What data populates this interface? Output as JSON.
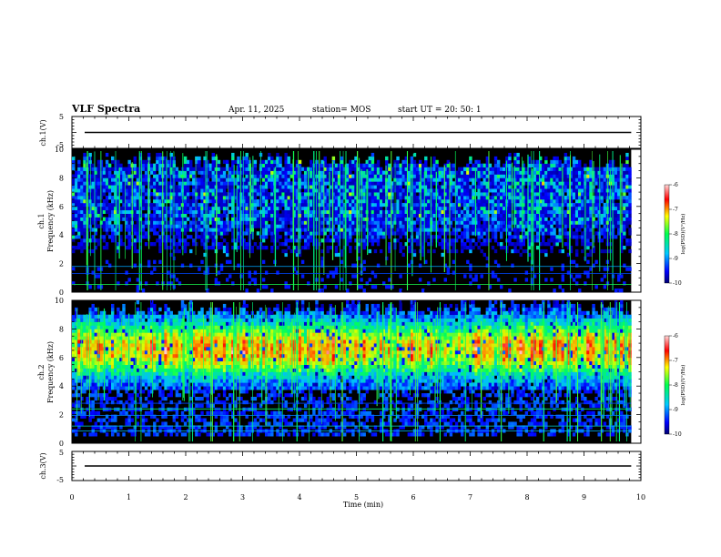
{
  "header": {
    "title": "VLF Spectra",
    "date": "Apr. 11, 2025",
    "station": "station= MOS",
    "start": "start  UT =   20: 50: 1"
  },
  "chart_data": [
    {
      "type": "line",
      "panel": "ch1-waveform",
      "ylabel": "ch.1(V)",
      "ylim": [
        -5,
        5
      ],
      "yticks": [
        "5",
        "-5"
      ],
      "x": [
        0,
        9.83
      ],
      "values": [
        0,
        0
      ]
    },
    {
      "type": "heatmap",
      "panel": "ch1-spectrogram",
      "ylabel": [
        "ch.1",
        "Frequency (kHz)"
      ],
      "ylim": [
        0,
        10
      ],
      "yticks": [
        "0",
        "2",
        "4",
        "6",
        "8",
        "10"
      ],
      "xlim": [
        0,
        10
      ],
      "data_xmax": 9.83,
      "colorbar": {
        "label": "log(PSD)(V²/Hz)",
        "range": [
          -10,
          -6
        ],
        "ticks": [
          "-6",
          "-7",
          "-8",
          "-9",
          "-10"
        ]
      }
    },
    {
      "type": "heatmap",
      "panel": "ch2-spectrogram",
      "ylabel": [
        "ch.2",
        "Frequency (kHz)"
      ],
      "ylim": [
        0,
        10
      ],
      "yticks": [
        "0",
        "2",
        "4",
        "6",
        "8",
        "10"
      ],
      "xlim": [
        0,
        10
      ],
      "data_xmax": 9.83,
      "colorbar": {
        "label": "log(PSD)(V²/Hz)",
        "range": [
          -10,
          -6
        ],
        "ticks": [
          "-6",
          "-7",
          "-8",
          "-9",
          "-10"
        ]
      }
    },
    {
      "type": "line",
      "panel": "ch3-waveform",
      "ylabel": "ch.3(V)",
      "ylim": [
        -5,
        5
      ],
      "yticks": [
        "5",
        "-5"
      ],
      "x": [
        0,
        9.83
      ],
      "values": [
        0,
        0
      ]
    }
  ],
  "xaxis": {
    "label": "Time (min)",
    "range": [
      0,
      10
    ],
    "ticks": [
      "0",
      "1",
      "2",
      "3",
      "4",
      "5",
      "6",
      "7",
      "8",
      "9",
      "10"
    ]
  },
  "colors": {
    "background": "#000000",
    "low": "#000066",
    "mid": "#00ff66",
    "high": "#ff0000"
  }
}
